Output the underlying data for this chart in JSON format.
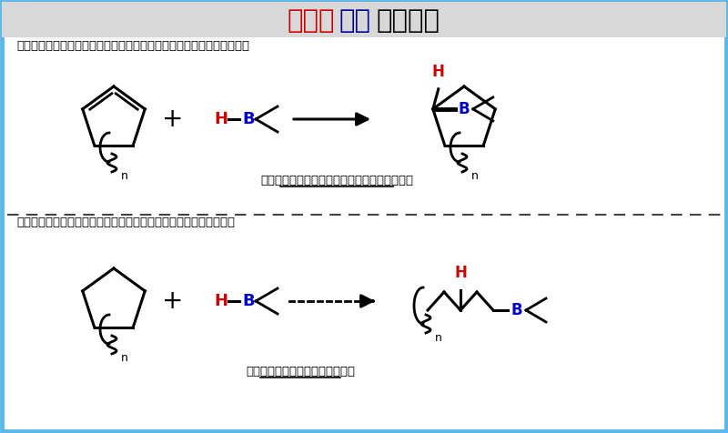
{
  "title_part1": "ヒドロ",
  "title_part1_color": "#CC0000",
  "title_part2": "ホウ",
  "title_part2_color": "#000099",
  "title_part3": "素化反応",
  "title_part3_color": "#000000",
  "top_label": "アルケン（二重結合）のヒドロホウ素化反応：大学の教科書で必ず習う",
  "bottom_label": "アルカン（単結合）のヒドロホウ素化反応：ほとんど報告例はない",
  "top_sublabel": "二重結合：シグマ結合とパイ結合でできている",
  "bottom_sublabel": "単結合：シグマ結合でできている",
  "bg_color": "#FFFFFF",
  "header_bg": "#D8D8D8",
  "border_color": "#5BB8E8",
  "divider_color": "#444444",
  "red": "#CC0000",
  "blue": "#0000CC",
  "black": "#000000"
}
